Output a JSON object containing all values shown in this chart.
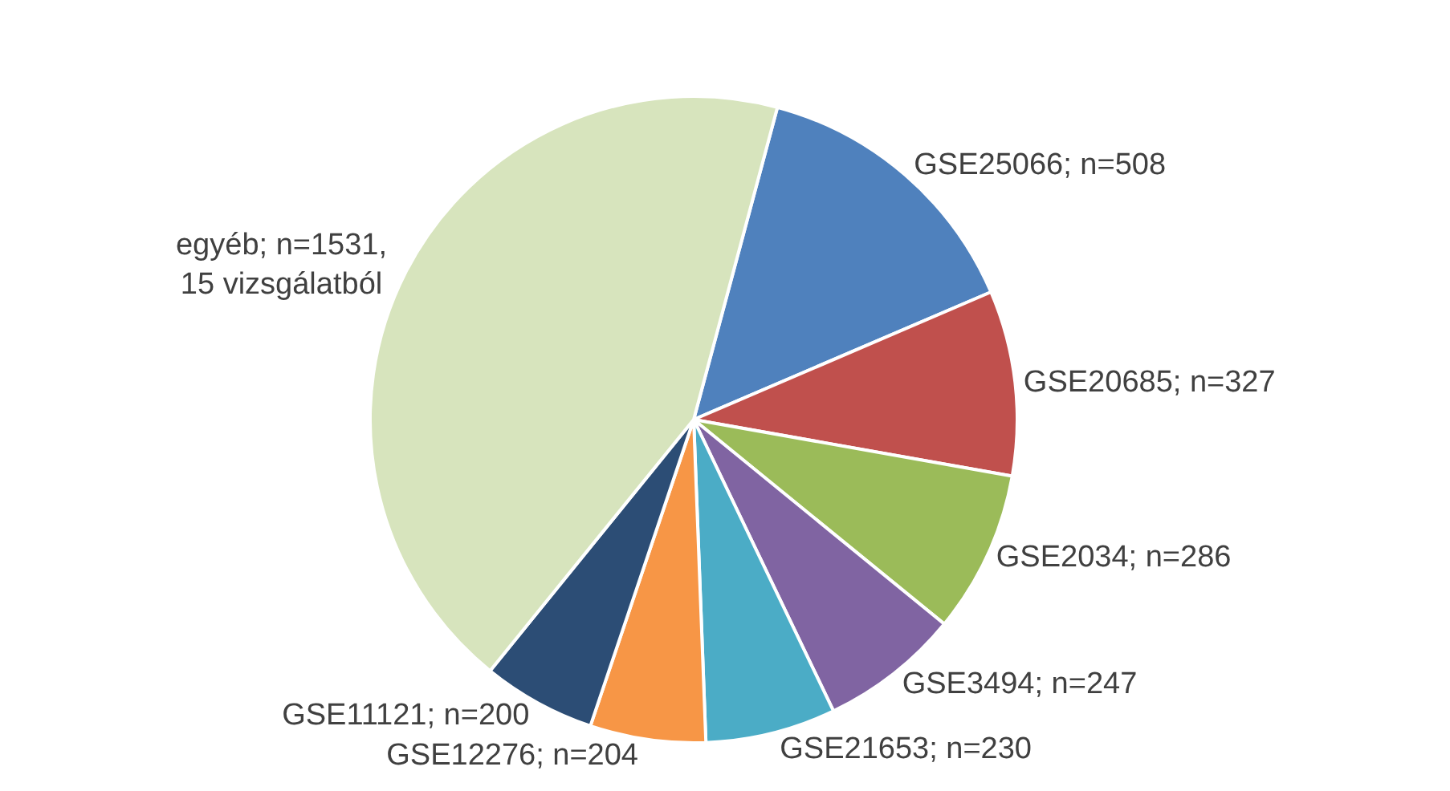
{
  "chart_data": {
    "type": "pie",
    "categories": [
      "GSE25066; n=508",
      "GSE20685; n=327",
      "GSE2034; n=286",
      "GSE3494; n=247",
      "GSE21653; n=230",
      "GSE12276; n=204",
      "GSE11121; n=200",
      "egyéb; n=1531,\n15 vizsgálatból"
    ],
    "values": [
      508,
      327,
      286,
      247,
      230,
      204,
      200,
      1531
    ],
    "colors": [
      "#4f81bd",
      "#c0504d",
      "#9bbb59",
      "#8064a2",
      "#4bacc6",
      "#f79646",
      "#2c4d75",
      "#d7e4bd"
    ],
    "legend": false
  }
}
